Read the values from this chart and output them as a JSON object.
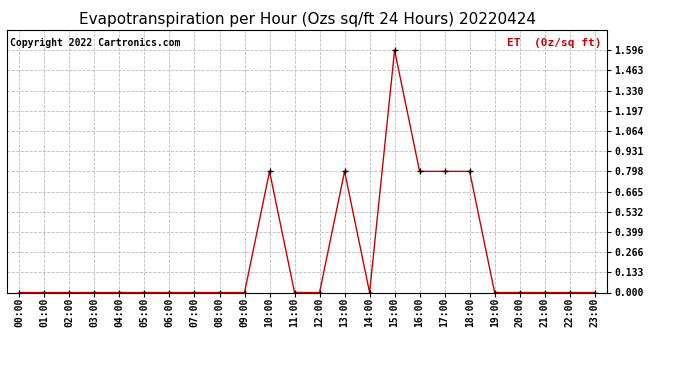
{
  "title": "Evapotranspiration per Hour (Ozs sq/ft 24 Hours) 20220424",
  "copyright_text": "Copyright 2022 Cartronics.com",
  "legend_label": "ET  (0z/sq ft)",
  "hours": [
    "00:00",
    "01:00",
    "02:00",
    "03:00",
    "04:00",
    "05:00",
    "06:00",
    "07:00",
    "08:00",
    "09:00",
    "10:00",
    "11:00",
    "12:00",
    "13:00",
    "14:00",
    "15:00",
    "16:00",
    "17:00",
    "18:00",
    "19:00",
    "20:00",
    "21:00",
    "22:00",
    "23:00"
  ],
  "et_values": [
    0.0,
    0.0,
    0.0,
    0.0,
    0.0,
    0.0,
    0.0,
    0.0,
    0.0,
    0.0,
    0.798,
    0.0,
    0.0,
    0.798,
    0.0,
    1.596,
    0.798,
    0.798,
    0.798,
    0.0,
    0.0,
    0.0,
    0.0,
    0.0
  ],
  "ylim": [
    0.0,
    1.729
  ],
  "yticks": [
    0.0,
    0.133,
    0.266,
    0.399,
    0.532,
    0.665,
    0.798,
    0.931,
    1.064,
    1.197,
    1.33,
    1.463,
    1.596
  ],
  "line_color": "#cc0000",
  "marker_color": "#000000",
  "bg_color": "#ffffff",
  "grid_color": "#bbbbbb",
  "title_fontsize": 11,
  "copyright_fontsize": 7,
  "legend_fontsize": 8,
  "legend_color": "#cc0000",
  "tick_fontsize": 7
}
